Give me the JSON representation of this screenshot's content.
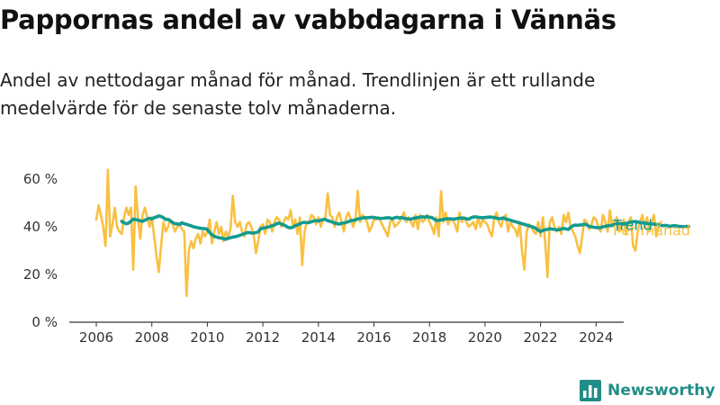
{
  "chart_data": {
    "type": "line",
    "title": "Pappornas andel av vabbdagarna i Vännäs",
    "subtitle": "Andel av nettodagar månad för månad. Trendlinjen är ett rullande medelvärde för de senaste tolv månaderna.",
    "xlabel": "",
    "ylabel": "",
    "x_ticks": [
      "2006",
      "2008",
      "2010",
      "2012",
      "2014",
      "2016",
      "2018",
      "2020",
      "2022",
      "2024"
    ],
    "y_ticks": [
      "0 %",
      "20 %",
      "40 %",
      "60 %"
    ],
    "ylim": [
      0,
      60
    ],
    "grid": false,
    "legend": "direct labels at line ends (right)",
    "series": [
      {
        "name": "Per månad",
        "color": "#f9c041",
        "start": "2006-01",
        "frequency": "monthly",
        "values": [
          43,
          49,
          45,
          40,
          32,
          64,
          36,
          41,
          48,
          40,
          38,
          37,
          44,
          48,
          45,
          48,
          22,
          57,
          44,
          35,
          45,
          48,
          44,
          40,
          44,
          36,
          28,
          21,
          32,
          42,
          38,
          40,
          43,
          41,
          38,
          40,
          41,
          39,
          38,
          11,
          30,
          34,
          31,
          35,
          37,
          33,
          38,
          36,
          38,
          43,
          33,
          38,
          42,
          37,
          40,
          34,
          38,
          36,
          39,
          53,
          42,
          40,
          42,
          38,
          36,
          41,
          42,
          40,
          37,
          29,
          34,
          40,
          41,
          37,
          43,
          42,
          38,
          42,
          44,
          43,
          40,
          42,
          44,
          43,
          47,
          40,
          43,
          37,
          44,
          24,
          38,
          42,
          42,
          45,
          44,
          41,
          44,
          40,
          43,
          44,
          54,
          45,
          44,
          40,
          44,
          46,
          42,
          38,
          44,
          46,
          43,
          40,
          43,
          55,
          42,
          45,
          44,
          42,
          38,
          40,
          43,
          43,
          44,
          42,
          40,
          38,
          36,
          42,
          43,
          40,
          41,
          42,
          44,
          46,
          42,
          44,
          42,
          40,
          45,
          39,
          45,
          42,
          43,
          45,
          42,
          40,
          37,
          44,
          36,
          55,
          42,
          46,
          41,
          43,
          43,
          41,
          38,
          46,
          42,
          44,
          42,
          40,
          41,
          42,
          39,
          44,
          40,
          43,
          42,
          41,
          38,
          36,
          44,
          46,
          42,
          40,
          44,
          45,
          38,
          42,
          40,
          39,
          36,
          42,
          30,
          22,
          38,
          41,
          40,
          38,
          37,
          42,
          36,
          44,
          34,
          19,
          42,
          44,
          40,
          38,
          40,
          37,
          45,
          42,
          46,
          40,
          38,
          36,
          32,
          29,
          36,
          43,
          42,
          39,
          41,
          44,
          43,
          40,
          38,
          45,
          42,
          38,
          47,
          40,
          42,
          44,
          38,
          40,
          43,
          37,
          42,
          44,
          32,
          30,
          38,
          42,
          45,
          40,
          44,
          38,
          42,
          45,
          36,
          40,
          42
        ]
      },
      {
        "name": "Trend",
        "color": "#139b8f",
        "start": "2006-12",
        "frequency": "monthly",
        "values": [
          42.3,
          41.7,
          41.3,
          41.6,
          42.4,
          43.2,
          43.0,
          42.8,
          42.5,
          42.3,
          42.8,
          43.2,
          43.6,
          43.3,
          43.8,
          44.1,
          44.6,
          44.3,
          43.8,
          43.1,
          43.1,
          42.5,
          41.8,
          41.3,
          41.2,
          41.0,
          41.7,
          41.3,
          41.0,
          40.7,
          40.4,
          40.0,
          39.8,
          39.6,
          39.4,
          39.3,
          39.2,
          38.9,
          37.6,
          36.6,
          36.0,
          35.7,
          35.4,
          35.3,
          35.0,
          34.8,
          35.2,
          35.4,
          35.7,
          35.8,
          36.1,
          36.4,
          36.8,
          37.1,
          37.5,
          37.6,
          37.4,
          37.4,
          37.6,
          37.9,
          39.2,
          39.4,
          39.6,
          39.8,
          40.1,
          40.5,
          40.7,
          41.3,
          41.6,
          41.1,
          40.8,
          40.3,
          39.7,
          39.6,
          39.8,
          40.5,
          40.8,
          41.3,
          41.7,
          41.9,
          41.7,
          41.8,
          42.1,
          42.5,
          42.6,
          42.4,
          42.8,
          43.0,
          43.1,
          42.6,
          42.3,
          42.0,
          41.6,
          41.4,
          41.1,
          41.5,
          41.6,
          41.9,
          42.1,
          42.6,
          42.7,
          42.9,
          43.3,
          43.5,
          43.7,
          43.8,
          43.8,
          43.9,
          44.0,
          43.9,
          43.7,
          43.6,
          43.5,
          43.6,
          43.7,
          43.8,
          43.7,
          43.4,
          43.8,
          44.0,
          43.7,
          43.9,
          43.5,
          43.4,
          43.3,
          43.2,
          43.6,
          43.7,
          43.9,
          44.1,
          44.2,
          44.0,
          44.3,
          44.0,
          43.9,
          43.3,
          42.6,
          42.7,
          42.9,
          43.1,
          43.3,
          43.4,
          43.4,
          43.2,
          43.3,
          43.5,
          43.6,
          43.7,
          43.6,
          43.4,
          43.2,
          43.8,
          44.1,
          44.2,
          44.0,
          43.9,
          43.8,
          43.9,
          44.0,
          44.1,
          44.0,
          43.9,
          43.6,
          43.4,
          43.5,
          43.7,
          43.3,
          43.0,
          42.8,
          42.4,
          42.2,
          41.9,
          41.6,
          41.3,
          41.0,
          40.7,
          40.4,
          40.1,
          39.8,
          39.3,
          38.6,
          38.0,
          38.5,
          38.8,
          38.9,
          39.2,
          39.0,
          38.9,
          38.7,
          38.8,
          39.0,
          39.4,
          39.1,
          38.9,
          39.8,
          40.4,
          40.7,
          40.6,
          40.8,
          40.8,
          41.1,
          40.8,
          40.2,
          40.0,
          39.8,
          39.7,
          39.6,
          39.7,
          40.0,
          40.2,
          40.4,
          40.5,
          40.7,
          41.0,
          41.2,
          41.4,
          41.3,
          41.1,
          41.4,
          41.7,
          42.0,
          42.1,
          42.2,
          42.0,
          41.8,
          41.7,
          41.6,
          41.4,
          41.3,
          41.2,
          41.1,
          41.0,
          40.9,
          40.6,
          40.5,
          40.6,
          40.4,
          40.2,
          40.4,
          40.5,
          40.3,
          40.2,
          40.1,
          40.0,
          40.2,
          40.1
        ]
      }
    ]
  },
  "branding": {
    "logo_text": "Newsworthy",
    "logo_icon": "bar-chart-logo-icon",
    "brand_color": "#1f8d86"
  }
}
